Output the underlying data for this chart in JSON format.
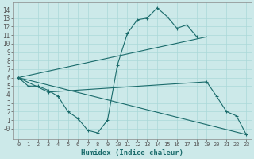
{
  "xlabel": "Humidex (Indice chaleur)",
  "xlim": [
    -0.5,
    23.5
  ],
  "ylim": [
    -1.2,
    14.8
  ],
  "xtick_labels": [
    "0",
    "1",
    "2",
    "3",
    "4",
    "5",
    "6",
    "7",
    "8",
    "9",
    "10",
    "11",
    "12",
    "13",
    "14",
    "15",
    "16",
    "17",
    "18",
    "19",
    "20",
    "21",
    "22",
    "23"
  ],
  "ytick_vals": [
    0,
    1,
    2,
    3,
    4,
    5,
    6,
    7,
    8,
    9,
    10,
    11,
    12,
    13,
    14
  ],
  "ytick_labels": [
    "-0",
    "1",
    "2",
    "3",
    "4",
    "5",
    "6",
    "7",
    "8",
    "9",
    "10",
    "11",
    "12",
    "13",
    "14"
  ],
  "bg_color": "#cce9e9",
  "line_color": "#1a6b6b",
  "grid_color": "#aad8d8",
  "line1_x": [
    0,
    1,
    2,
    3,
    4,
    5,
    6,
    7,
    8,
    9,
    10,
    11,
    12,
    13,
    14,
    15,
    16,
    17,
    18
  ],
  "line1_y": [
    6.0,
    5.0,
    5.0,
    4.5,
    3.8,
    2.0,
    1.2,
    -0.2,
    -0.5,
    1.0,
    7.5,
    11.2,
    12.8,
    13.0,
    14.2,
    13.2,
    11.8,
    12.2,
    10.8
  ],
  "line2_x": [
    0,
    19
  ],
  "line2_y": [
    6.0,
    10.8
  ],
  "line3_x": [
    0,
    3,
    19,
    20,
    21,
    22,
    23
  ],
  "line3_y": [
    6.0,
    4.3,
    5.5,
    3.8,
    2.0,
    1.5,
    -0.7
  ],
  "line4_x": [
    0,
    23
  ],
  "line4_y": [
    6.0,
    -0.7
  ]
}
